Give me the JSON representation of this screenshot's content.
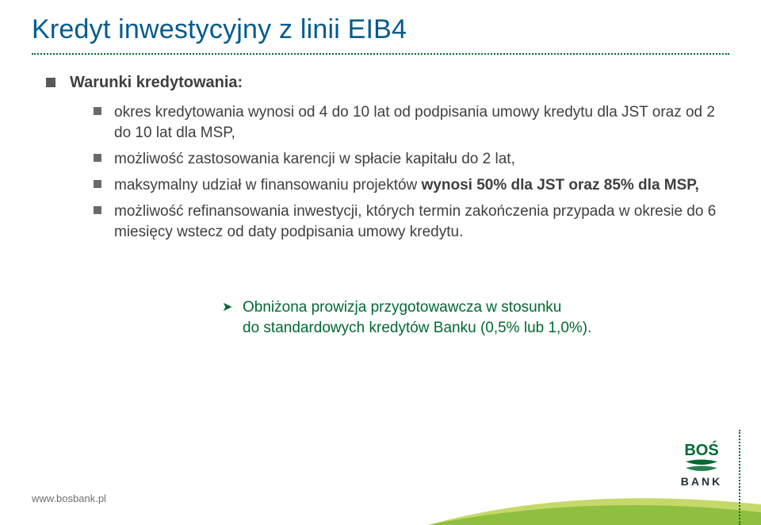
{
  "colors": {
    "title": "#005b8f",
    "body_text": "#3f3f3f",
    "bullet_square": "#595959",
    "sub_square": "#6a6a6a",
    "highlight": "#006a32",
    "divider": "#006a32",
    "dottedv": "#006a32",
    "curve1": "#8fbf3f",
    "curve2": "#c5d96a",
    "footer": "#6f6f6f",
    "logo_green": "#006a32",
    "logo_dark": "#24313a"
  },
  "title": "Kredyt inwestycyjny z linii EIB4",
  "section_label": "Warunki kredytowania:",
  "items": [
    {
      "text": "okres kredytowania wynosi od 4 do 10 lat od podpisania umowy kredytu dla JST oraz od 2 do 10 lat dla MSP,"
    },
    {
      "text": "możliwość zastosowania karencji w spłacie kapitału do 2 lat,"
    },
    {
      "prefix": "maksymalny udział w finansowaniu projektów ",
      "bold": "wynosi 50% dla JST oraz 85% dla MSP,"
    },
    {
      "text": "możliwość refinansowania inwestycji, których termin zakończenia przypada w okresie do 6 miesięcy wstecz od daty podpisania umowy kredytu."
    }
  ],
  "highlight": {
    "line1": "Obniżona prowizja przygotowawcza w stosunku",
    "line2": "do standardowych kredytów Banku (0,5% lub 1,0%)."
  },
  "footer": "www.bosbank.pl",
  "logo": {
    "top": "BOŚ",
    "bottom": "B A N K"
  }
}
